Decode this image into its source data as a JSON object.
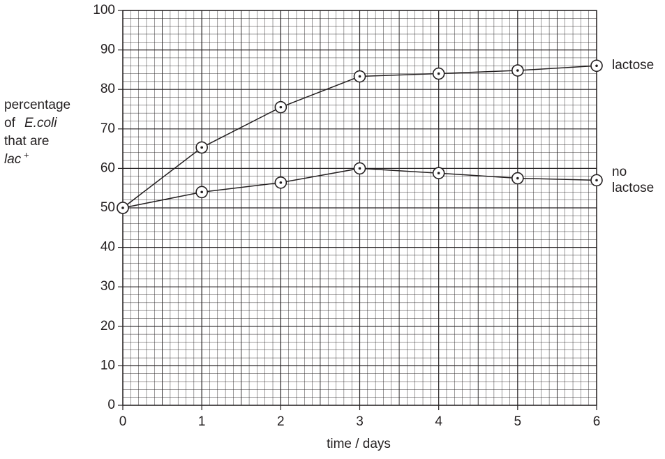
{
  "chart_data": {
    "type": "line",
    "x": [
      0,
      1,
      2,
      3,
      4,
      5,
      6
    ],
    "series": [
      {
        "name": "lactose",
        "color": "#231f20",
        "values": [
          50,
          65.3,
          75.5,
          83.3,
          84,
          84.8,
          86
        ]
      },
      {
        "name": "no lactose",
        "color": "#231f20",
        "values": [
          50,
          54,
          56.4,
          60,
          58.8,
          57.5,
          57
        ]
      }
    ],
    "x_label": "time / days",
    "y_label": [
      "percentage",
      "of",
      "E.coli",
      "that are",
      "lac",
      "+"
    ],
    "xlim": [
      0,
      6
    ],
    "xticks": [
      0,
      1,
      2,
      3,
      4,
      5,
      6
    ],
    "ylim": [
      0,
      100
    ],
    "yticks": [
      0,
      10,
      20,
      30,
      40,
      50,
      60,
      70,
      80,
      90,
      100
    ],
    "grid": true
  }
}
